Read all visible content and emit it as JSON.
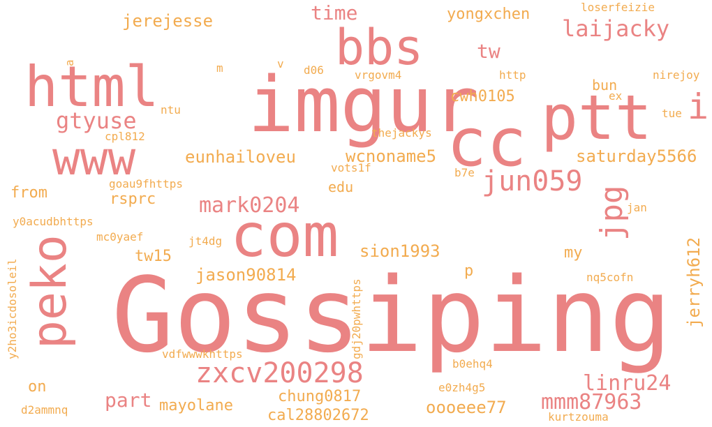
{
  "palette": {
    "primary": "#ea8383",
    "secondary": "#f2ab4f",
    "background": "#ffffff"
  },
  "words": [
    {
      "t": "Gossiping",
      "c": "p"
    },
    {
      "t": "imgur",
      "c": "p"
    },
    {
      "t": "com",
      "c": "p"
    },
    {
      "t": "cc",
      "c": "p"
    },
    {
      "t": "ptt",
      "c": "p"
    },
    {
      "t": "html",
      "c": "p"
    },
    {
      "t": "bbs",
      "c": "p"
    },
    {
      "t": "www",
      "c": "p"
    },
    {
      "t": "peko",
      "c": "p"
    },
    {
      "t": "zxcv200298",
      "c": "p"
    },
    {
      "t": "jpg",
      "c": "p"
    },
    {
      "t": "jun059",
      "c": "p"
    },
    {
      "t": "i",
      "c": "p"
    },
    {
      "t": "laijacky",
      "c": "p"
    },
    {
      "t": "gtyuse",
      "c": "p"
    },
    {
      "t": "mark0204",
      "c": "p"
    },
    {
      "t": "mmm87963",
      "c": "p"
    },
    {
      "t": "linru24",
      "c": "p"
    },
    {
      "t": "part",
      "c": "p"
    },
    {
      "t": "tw",
      "c": "p"
    },
    {
      "t": "time",
      "c": "p"
    },
    {
      "t": "jerejesse",
      "c": "s"
    },
    {
      "t": "yongxchen",
      "c": "s"
    },
    {
      "t": "cwh0105",
      "c": "s"
    },
    {
      "t": "saturday5566",
      "c": "s"
    },
    {
      "t": "wcnoname5",
      "c": "s"
    },
    {
      "t": "eunhailoveu",
      "c": "s"
    },
    {
      "t": "jason90814",
      "c": "s"
    },
    {
      "t": "sion1993",
      "c": "s"
    },
    {
      "t": "jerryh612",
      "c": "s"
    },
    {
      "t": "chung0817",
      "c": "s"
    },
    {
      "t": "oooeee77",
      "c": "s"
    },
    {
      "t": "cal28802672",
      "c": "s"
    },
    {
      "t": "mayolane",
      "c": "s"
    },
    {
      "t": "rsprc",
      "c": "s"
    },
    {
      "t": "tw15",
      "c": "s"
    },
    {
      "t": "from",
      "c": "s"
    },
    {
      "t": "edu",
      "c": "s"
    },
    {
      "t": "bun",
      "c": "s"
    },
    {
      "t": "my",
      "c": "s"
    },
    {
      "t": "on",
      "c": "s"
    },
    {
      "t": "p",
      "c": "s"
    },
    {
      "t": "loserfeizie",
      "c": "s"
    },
    {
      "t": "nirejoy",
      "c": "s"
    },
    {
      "t": "http",
      "c": "s"
    },
    {
      "t": "vrgovm4",
      "c": "s"
    },
    {
      "t": "d06",
      "c": "s"
    },
    {
      "t": "ntu",
      "c": "s"
    },
    {
      "t": "cpl812",
      "c": "s"
    },
    {
      "t": "thejackys",
      "c": "s"
    },
    {
      "t": "vots1f",
      "c": "s"
    },
    {
      "t": "b7e",
      "c": "s"
    },
    {
      "t": "goau9fhttps",
      "c": "s"
    },
    {
      "t": "y0acudbhttps",
      "c": "s"
    },
    {
      "t": "mc0yaef",
      "c": "s"
    },
    {
      "t": "jt4dg",
      "c": "s"
    },
    {
      "t": "jan",
      "c": "s"
    },
    {
      "t": "nq5cofn",
      "c": "s"
    },
    {
      "t": "vdfwwwkhttps",
      "c": "s"
    },
    {
      "t": "b0ehq4",
      "c": "s"
    },
    {
      "t": "e0zh4g5",
      "c": "s"
    },
    {
      "t": "d2ammnq",
      "c": "s"
    },
    {
      "t": "kurtzouma",
      "c": "s"
    },
    {
      "t": "gdj20pwhttps",
      "c": "s"
    },
    {
      "t": "y2ho3icdosoleil",
      "c": "s"
    },
    {
      "t": "tue",
      "c": "s"
    },
    {
      "t": "ex",
      "c": "s"
    },
    {
      "t": "m",
      "c": "s"
    },
    {
      "t": "v",
      "c": "s"
    },
    {
      "t": "a",
      "c": "s"
    }
  ]
}
